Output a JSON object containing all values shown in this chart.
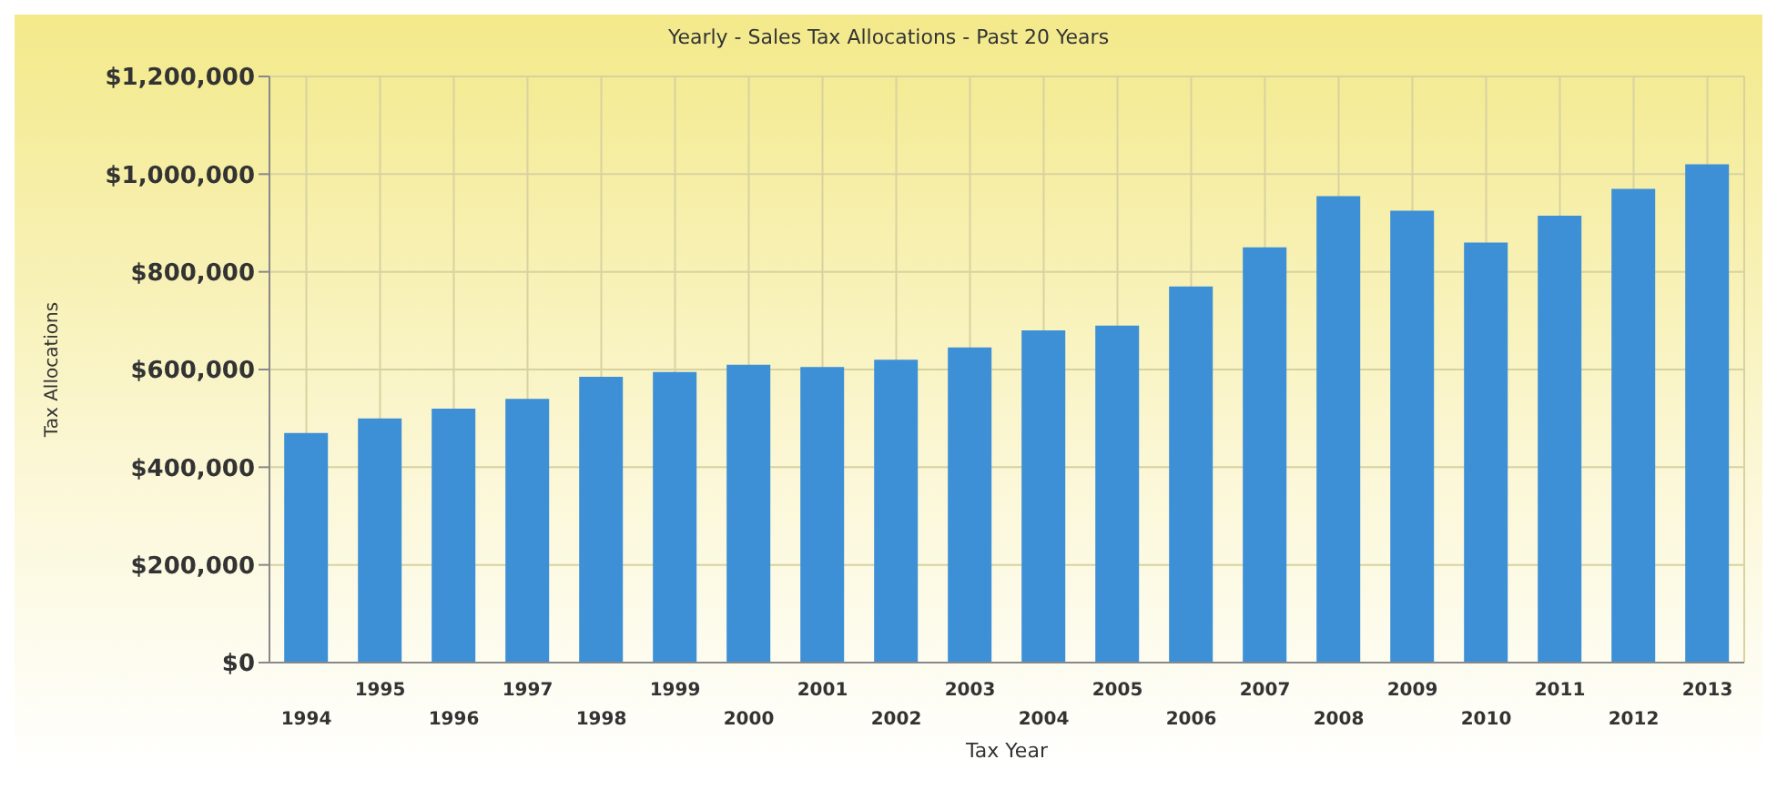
{
  "chart_data": {
    "type": "bar",
    "title": "Yearly - Sales Tax Allocations - Past 20 Years",
    "xlabel": "Tax Year",
    "ylabel": "Tax Allocations",
    "categories": [
      "1994",
      "1995",
      "1996",
      "1997",
      "1998",
      "1999",
      "2000",
      "2001",
      "2002",
      "2003",
      "2004",
      "2005",
      "2006",
      "2007",
      "2008",
      "2009",
      "2010",
      "2011",
      "2012",
      "2013"
    ],
    "values": [
      470000,
      500000,
      520000,
      540000,
      585000,
      595000,
      610000,
      605000,
      620000,
      645000,
      680000,
      690000,
      770000,
      850000,
      955000,
      925000,
      860000,
      915000,
      970000,
      1020000
    ],
    "color": "#3d8fd6",
    "ylim": [
      0,
      1200000
    ],
    "yticks": [
      {
        "value": 0,
        "label": "$0"
      },
      {
        "value": 200000,
        "label": "$200,000"
      },
      {
        "value": 400000,
        "label": "$400,000"
      },
      {
        "value": 600000,
        "label": "$600,000"
      },
      {
        "value": 800000,
        "label": "$800,000"
      },
      {
        "value": 1000000,
        "label": "$1,000,000"
      },
      {
        "value": 1200000,
        "label": "$1,200,000"
      }
    ],
    "grid": true
  }
}
